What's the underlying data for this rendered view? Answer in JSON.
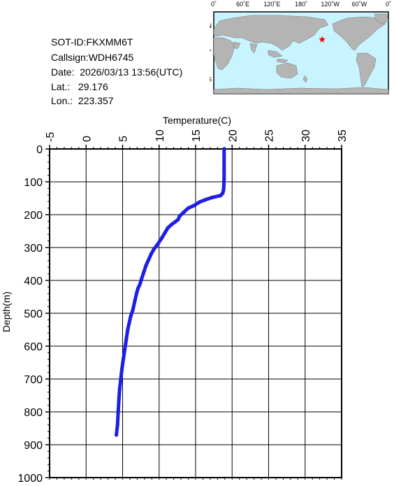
{
  "station": {
    "sot_id_line": "SOT-ID:FKXMM6T",
    "callsign_line": "Callsign:WDH6745",
    "date_line": "Date:  2026/03/13 13:56(UTC)",
    "lat_line": "Lat.:   29.176",
    "lon_line": "Lon.:  223.357"
  },
  "map": {
    "lon_labels": [
      "0˚",
      "60˚E",
      "120˚E",
      "180˚",
      "120˚W",
      "60˚W",
      "0˚"
    ],
    "lat_labels": [
      "60˚N",
      "0˚",
      "60˚S"
    ],
    "marker": {
      "lat": 29.176,
      "lon": 223.357,
      "color": "#ff0000"
    },
    "ocean_color": "#c8f4ff",
    "land_color": "#b4b4b4"
  },
  "chart_data": {
    "type": "line",
    "xlabel": "Temperature(C)",
    "ylabel": "Depth(m)",
    "xlim": [
      -5,
      35
    ],
    "ylim": [
      1000,
      0
    ],
    "x_ticks": [
      "-5",
      "0",
      "5",
      "10",
      "15",
      "20",
      "25",
      "30",
      "35"
    ],
    "y_ticks": [
      "0",
      "100",
      "200",
      "300",
      "400",
      "500",
      "600",
      "700",
      "800",
      "900",
      "1000"
    ],
    "grid": true,
    "series_color": "#1e1ee6",
    "series": [
      {
        "x": [
          18.9,
          18.9,
          18.9,
          18.9,
          18.85,
          18.8,
          18.7,
          18.4,
          17.2,
          16.3,
          15.5,
          14.8,
          14.0,
          13.4,
          12.8,
          12.6,
          12.2,
          11.7,
          11.2,
          10.8,
          10.4,
          9.8,
          9.3,
          8.9,
          8.5,
          8.2,
          7.9,
          7.6,
          7.4,
          7.1,
          6.9,
          6.7,
          6.4,
          6.1,
          5.9,
          5.7,
          5.5,
          5.3,
          5.1,
          4.9,
          4.75,
          4.6,
          4.5,
          4.4,
          4.3,
          4.15
        ],
        "y": [
          0,
          30,
          60,
          90,
          120,
          128,
          135,
          142,
          148,
          155,
          162,
          172,
          180,
          192,
          205,
          215,
          222,
          230,
          240,
          255,
          270,
          290,
          305,
          320,
          340,
          355,
          375,
          395,
          410,
          425,
          440,
          460,
          490,
          510,
          530,
          550,
          580,
          610,
          640,
          670,
          700,
          730,
          760,
          800,
          840,
          870
        ]
      }
    ]
  }
}
